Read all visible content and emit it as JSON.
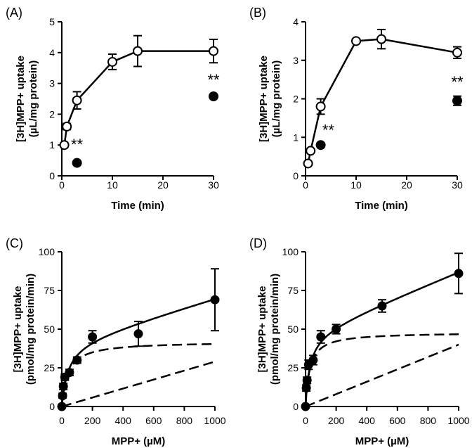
{
  "chart_data": [
    {
      "type": "scatter",
      "panel_label": "(A)",
      "xlabel": "Time (min)",
      "ylabel_line1": "[3H]MPP+ uptake",
      "ylabel_line2": "(µL/mg protein)",
      "xlim": [
        0,
        30
      ],
      "ylim": [
        0,
        5
      ],
      "xticks": [
        0,
        10,
        20,
        30
      ],
      "yticks": [
        0,
        1,
        2,
        3,
        4,
        5
      ],
      "series": [
        {
          "marker": "open-circle",
          "connected": true,
          "x": [
            0.5,
            1,
            3,
            10,
            15,
            30
          ],
          "y": [
            1.0,
            1.6,
            2.45,
            3.7,
            4.05,
            4.05
          ],
          "err": [
            0.05,
            0.1,
            0.28,
            0.25,
            0.5,
            0.38
          ]
        },
        {
          "marker": "filled-circle",
          "connected": false,
          "x": [
            3,
            30
          ],
          "y": [
            0.42,
            2.58
          ],
          "err": [
            0,
            0
          ]
        }
      ],
      "annotations": [
        {
          "text": "**",
          "x": 3,
          "y": 0.85
        },
        {
          "text": "**",
          "x": 30,
          "y": 2.95
        }
      ]
    },
    {
      "type": "scatter",
      "panel_label": "(B)",
      "xlabel": "Time (min)",
      "ylabel_line1": "[3H]MPP+ uptake",
      "ylabel_line2": "(µL/mg protein)",
      "xlim": [
        0,
        30
      ],
      "ylim": [
        0,
        4
      ],
      "xticks": [
        0,
        10,
        20,
        30
      ],
      "yticks": [
        0,
        1,
        2,
        3,
        4
      ],
      "series": [
        {
          "marker": "open-circle",
          "connected": true,
          "x": [
            0.5,
            1,
            3,
            10,
            15,
            30
          ],
          "y": [
            0.32,
            0.65,
            1.8,
            3.5,
            3.55,
            3.2
          ],
          "err": [
            0.05,
            0.05,
            0.2,
            0.05,
            0.25,
            0.15
          ]
        },
        {
          "marker": "filled-circle",
          "connected": false,
          "x": [
            3,
            30
          ],
          "y": [
            0.8,
            1.95
          ],
          "err": [
            0,
            0.12
          ]
        }
      ],
      "annotations": [
        {
          "text": "**",
          "x": 4.5,
          "y": 1.05
        },
        {
          "text": "**",
          "x": 30,
          "y": 2.3
        }
      ]
    },
    {
      "type": "scatter",
      "panel_label": "(C)",
      "xlabel": "MPP+ (µM)",
      "ylabel_line1": "[3H]MPP+ uptake",
      "ylabel_line2": "(pmol/mg protein/min)",
      "xlim": [
        0,
        1000
      ],
      "ylim": [
        0,
        100
      ],
      "xticks": [
        0,
        200,
        400,
        600,
        800,
        1000
      ],
      "yticks": [
        0,
        25,
        50,
        75,
        100
      ],
      "points": {
        "x": [
          0,
          5,
          10,
          20,
          50,
          100,
          200,
          500,
          1000
        ],
        "y": [
          0,
          7,
          13,
          19,
          22,
          30,
          45,
          47,
          69
        ],
        "err": [
          0,
          1.5,
          2,
          2,
          2,
          2,
          4,
          8,
          20
        ]
      },
      "fit": {
        "vmax": 42,
        "km": 40,
        "kd": 0.029
      }
    },
    {
      "type": "scatter",
      "panel_label": "(D)",
      "xlabel": "MPP+ (µM)",
      "ylabel_line1": "[3H]MPP+ uptake",
      "ylabel_line2": "(pmol/mg protein/min)",
      "xlim": [
        0,
        1000
      ],
      "ylim": [
        0,
        100
      ],
      "xticks": [
        0,
        200,
        400,
        600,
        800,
        1000
      ],
      "yticks": [
        0,
        25,
        50,
        75,
        100
      ],
      "points": {
        "x": [
          0,
          5,
          10,
          20,
          50,
          100,
          200,
          500,
          1000
        ],
        "y": [
          0,
          12,
          17,
          27,
          30,
          45,
          50,
          65,
          86
        ],
        "err": [
          0,
          2,
          2,
          3,
          3,
          4,
          3,
          4,
          13
        ]
      },
      "fit": {
        "vmax": 48,
        "km": 28,
        "kd": 0.04
      }
    }
  ]
}
